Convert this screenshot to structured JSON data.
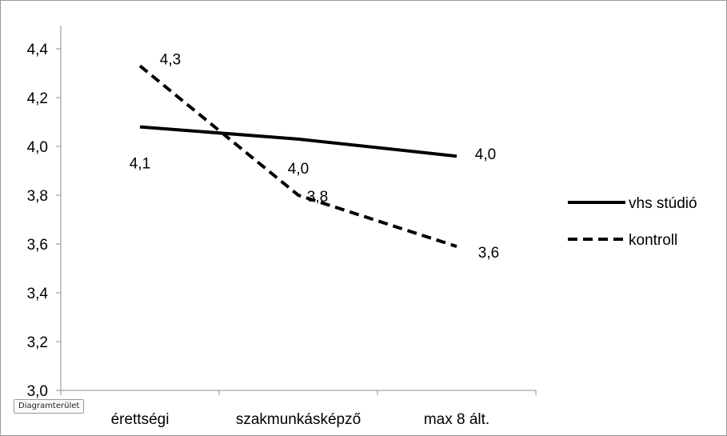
{
  "chart_data": {
    "type": "line",
    "title": "",
    "xlabel": "",
    "ylabel": "",
    "categories": [
      "érettségi",
      "szakmunkásképző",
      "max 8 ált."
    ],
    "ylim": [
      3.0,
      4.4
    ],
    "yticks": [
      "3,0",
      "3,2",
      "3,4",
      "3,6",
      "3,8",
      "4,0",
      "4,2",
      "4,4"
    ],
    "ytick_values": [
      3.0,
      3.2,
      3.4,
      3.6,
      3.8,
      4.0,
      4.2,
      4.4
    ],
    "grid": false,
    "legend_position": "right",
    "series": [
      {
        "name": "vhs stúdió",
        "values": [
          4.08,
          4.03,
          3.96
        ],
        "labels": [
          "4,1",
          "4,0",
          "4,0"
        ],
        "color": "#000000",
        "dash": "solid"
      },
      {
        "name": "kontroll",
        "values": [
          4.33,
          3.8,
          3.59
        ],
        "labels": [
          "4,3",
          "3,8",
          "3,6"
        ],
        "color": "#000000",
        "dash": "dashed"
      }
    ]
  },
  "tooltip": "Diagramterület"
}
